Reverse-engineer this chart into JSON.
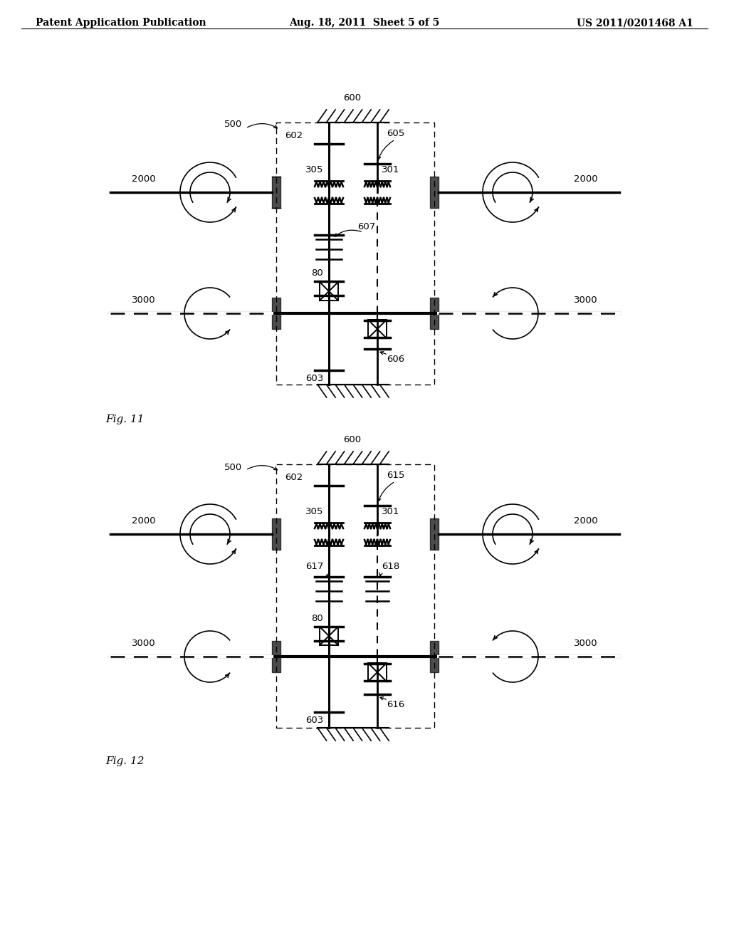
{
  "bg_color": "#ffffff",
  "header_left": "Patent Application Publication",
  "header_center": "Aug. 18, 2011  Sheet 5 of 5",
  "header_right": "US 2011/0201468 A1",
  "fig11_label": "Fig. 11",
  "fig12_label": "Fig. 12"
}
